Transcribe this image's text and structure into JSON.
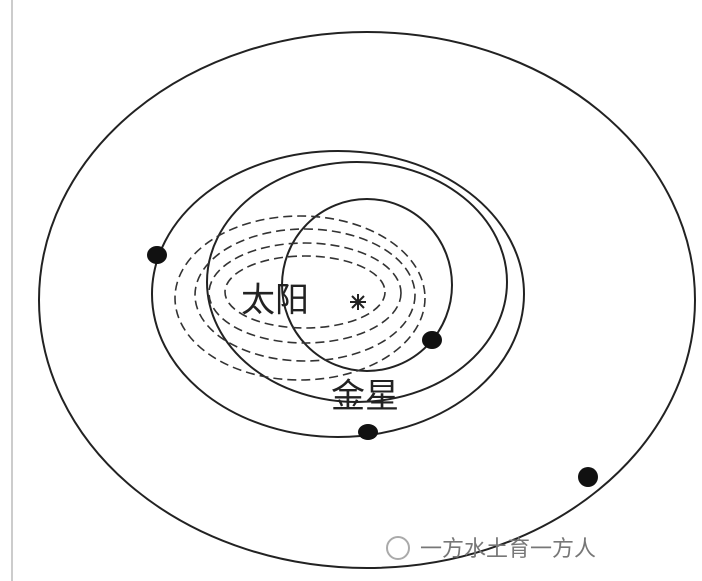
{
  "labels": {
    "sun": "太阳",
    "venus": "金星"
  },
  "watermark": "一方水土育一方人"
}
